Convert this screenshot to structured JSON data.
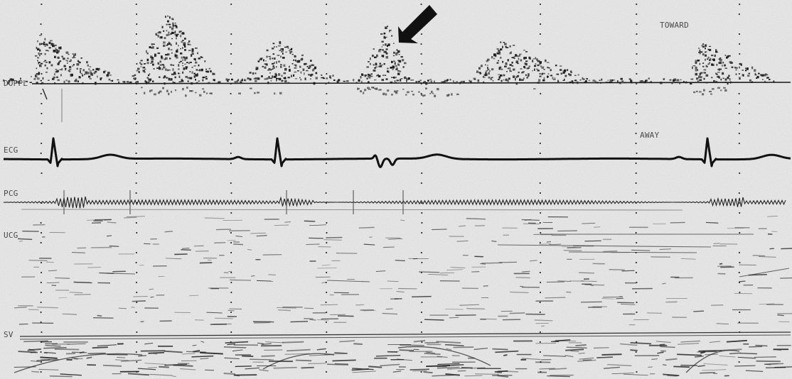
{
  "labels": {
    "doppl": "DOPPL",
    "ecg": "ECG",
    "pcg": "PCG",
    "ucg": "UCG",
    "sv": "SV",
    "toward": "TOWARD",
    "away": "AWAY"
  },
  "colors": {
    "paper": "#efefef",
    "trace": "#111111",
    "label": "#4a4a4a",
    "dots": "#333333"
  },
  "icons": {
    "arrow": "arrow-down-left-icon"
  }
}
